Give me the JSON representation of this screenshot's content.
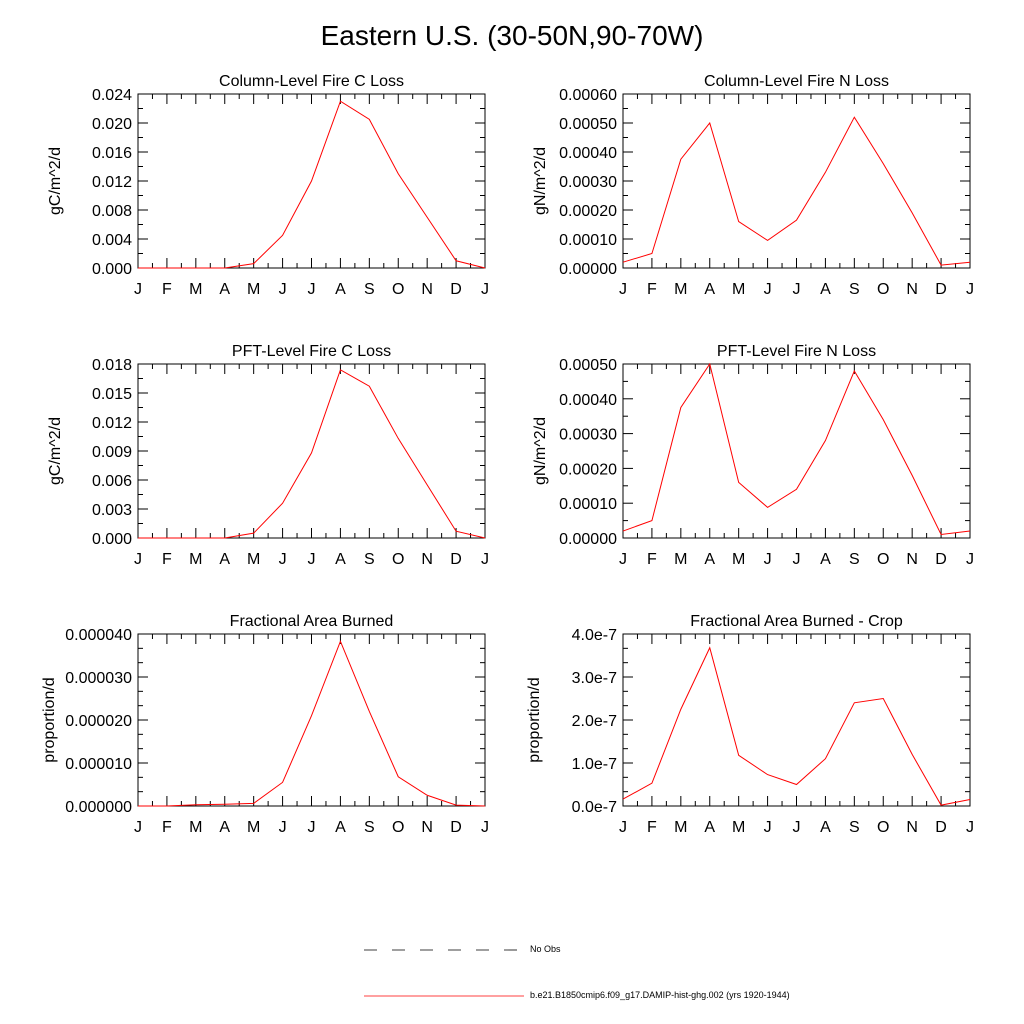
{
  "page_title": "Eastern U.S. (30-50N,90-70W)",
  "legend": {
    "obs_label": "No Obs",
    "model_label": "b.e21.B1850cmip6.f09_g17.DAMIP-hist-ghg.002 (yrs 1920-1944)",
    "model_color": "#ff0000"
  },
  "chart_data": [
    {
      "type": "line",
      "title": "Column-Level Fire C Loss",
      "ylabel": "gC/m^2/d",
      "categories": [
        "J",
        "F",
        "M",
        "A",
        "M",
        "J",
        "J",
        "A",
        "S",
        "O",
        "N",
        "D",
        "J"
      ],
      "ylim": [
        0,
        0.024
      ],
      "yticks": [
        0,
        0.004,
        0.008,
        0.012,
        0.016,
        0.02,
        0.024
      ],
      "ytick_labels": [
        "0.000",
        "0.004",
        "0.008",
        "0.012",
        "0.016",
        "0.020",
        "0.024"
      ],
      "minor_per_major": 2,
      "series": [
        {
          "color": "#ff0000",
          "values": [
            0.0,
            0.0,
            0.0,
            0.0,
            0.0006,
            0.0045,
            0.012,
            0.023,
            0.0205,
            0.013,
            0.007,
            0.001,
            0.0
          ]
        }
      ]
    },
    {
      "type": "line",
      "title": "Column-Level Fire N Loss",
      "ylabel": "gN/m^2/d",
      "categories": [
        "J",
        "F",
        "M",
        "A",
        "M",
        "J",
        "J",
        "A",
        "S",
        "O",
        "N",
        "D",
        "J"
      ],
      "ylim": [
        0,
        0.0006
      ],
      "yticks": [
        0,
        0.0001,
        0.0002,
        0.0003,
        0.0004,
        0.0005,
        0.0006
      ],
      "ytick_labels": [
        "0.00000",
        "0.00010",
        "0.00020",
        "0.00030",
        "0.00040",
        "0.00050",
        "0.00060"
      ],
      "minor_per_major": 2,
      "series": [
        {
          "color": "#ff0000",
          "values": [
            2e-05,
            5e-05,
            0.000375,
            0.0005,
            0.00016,
            9.5e-05,
            0.000165,
            0.00033,
            0.00052,
            0.00036,
            0.00019,
            1e-05,
            2e-05
          ]
        }
      ]
    },
    {
      "type": "line",
      "title": "PFT-Level Fire C Loss",
      "ylabel": "gC/m^2/d",
      "categories": [
        "J",
        "F",
        "M",
        "A",
        "M",
        "J",
        "J",
        "A",
        "S",
        "O",
        "N",
        "D",
        "J"
      ],
      "ylim": [
        0,
        0.018
      ],
      "yticks": [
        0,
        0.003,
        0.006,
        0.009,
        0.012,
        0.015,
        0.018
      ],
      "ytick_labels": [
        "0.000",
        "0.003",
        "0.006",
        "0.009",
        "0.012",
        "0.015",
        "0.018"
      ],
      "minor_per_major": 2,
      "series": [
        {
          "color": "#ff0000",
          "values": [
            0.0,
            0.0,
            0.0,
            0.0,
            0.0005,
            0.0036,
            0.0088,
            0.0174,
            0.0157,
            0.0103,
            0.0055,
            0.0007,
            0.0
          ]
        }
      ]
    },
    {
      "type": "line",
      "title": "PFT-Level Fire N Loss",
      "ylabel": "gN/m^2/d",
      "categories": [
        "J",
        "F",
        "M",
        "A",
        "M",
        "J",
        "J",
        "A",
        "S",
        "O",
        "N",
        "D",
        "J"
      ],
      "ylim": [
        0,
        0.0005
      ],
      "yticks": [
        0,
        0.0001,
        0.0002,
        0.0003,
        0.0004,
        0.0005
      ],
      "ytick_labels": [
        "0.00000",
        "0.00010",
        "0.00020",
        "0.00030",
        "0.00040",
        "0.00050"
      ],
      "minor_per_major": 2,
      "series": [
        {
          "color": "#ff0000",
          "values": [
            2e-05,
            5e-05,
            0.000375,
            0.0005,
            0.00016,
            8.8e-05,
            0.00014,
            0.00028,
            0.00048,
            0.00034,
            0.00018,
            1e-05,
            2e-05
          ]
        }
      ]
    },
    {
      "type": "line",
      "title": "Fractional Area Burned",
      "ylabel": "proportion/d",
      "categories": [
        "J",
        "F",
        "M",
        "A",
        "M",
        "J",
        "J",
        "A",
        "S",
        "O",
        "N",
        "D",
        "J"
      ],
      "ylim": [
        0,
        4e-05
      ],
      "yticks": [
        0,
        1e-05,
        2e-05,
        3e-05,
        4e-05
      ],
      "ytick_labels": [
        "0.000000",
        "0.000010",
        "0.000020",
        "0.000030",
        "0.000040"
      ],
      "minor_per_major": 3,
      "series": [
        {
          "color": "#ff0000",
          "values": [
            0.0,
            0.0,
            3e-07,
            4e-07,
            6e-07,
            5.5e-06,
            2.1e-05,
            3.83e-05,
            2.2e-05,
            6.8e-06,
            2.5e-06,
            2e-07,
            0.0
          ]
        }
      ]
    },
    {
      "type": "line",
      "title": "Fractional Area Burned - Crop",
      "ylabel": "proportion/d",
      "categories": [
        "J",
        "F",
        "M",
        "A",
        "M",
        "J",
        "J",
        "A",
        "S",
        "O",
        "N",
        "D",
        "J"
      ],
      "ylim": [
        0,
        4e-07
      ],
      "yticks": [
        0,
        1e-07,
        2e-07,
        3e-07,
        4e-07
      ],
      "ytick_labels": [
        "0.0e-7",
        "1.0e-7",
        "2.0e-7",
        "3.0e-7",
        "4.0e-7"
      ],
      "minor_per_major": 3,
      "series": [
        {
          "color": "#ff0000",
          "values": [
            1.6e-08,
            5.3e-08,
            2.25e-07,
            3.68e-07,
            1.18e-07,
            7.3e-08,
            5e-08,
            1.1e-07,
            2.4e-07,
            2.5e-07,
            1.2e-07,
            2e-09,
            1.5e-08
          ]
        }
      ]
    }
  ]
}
